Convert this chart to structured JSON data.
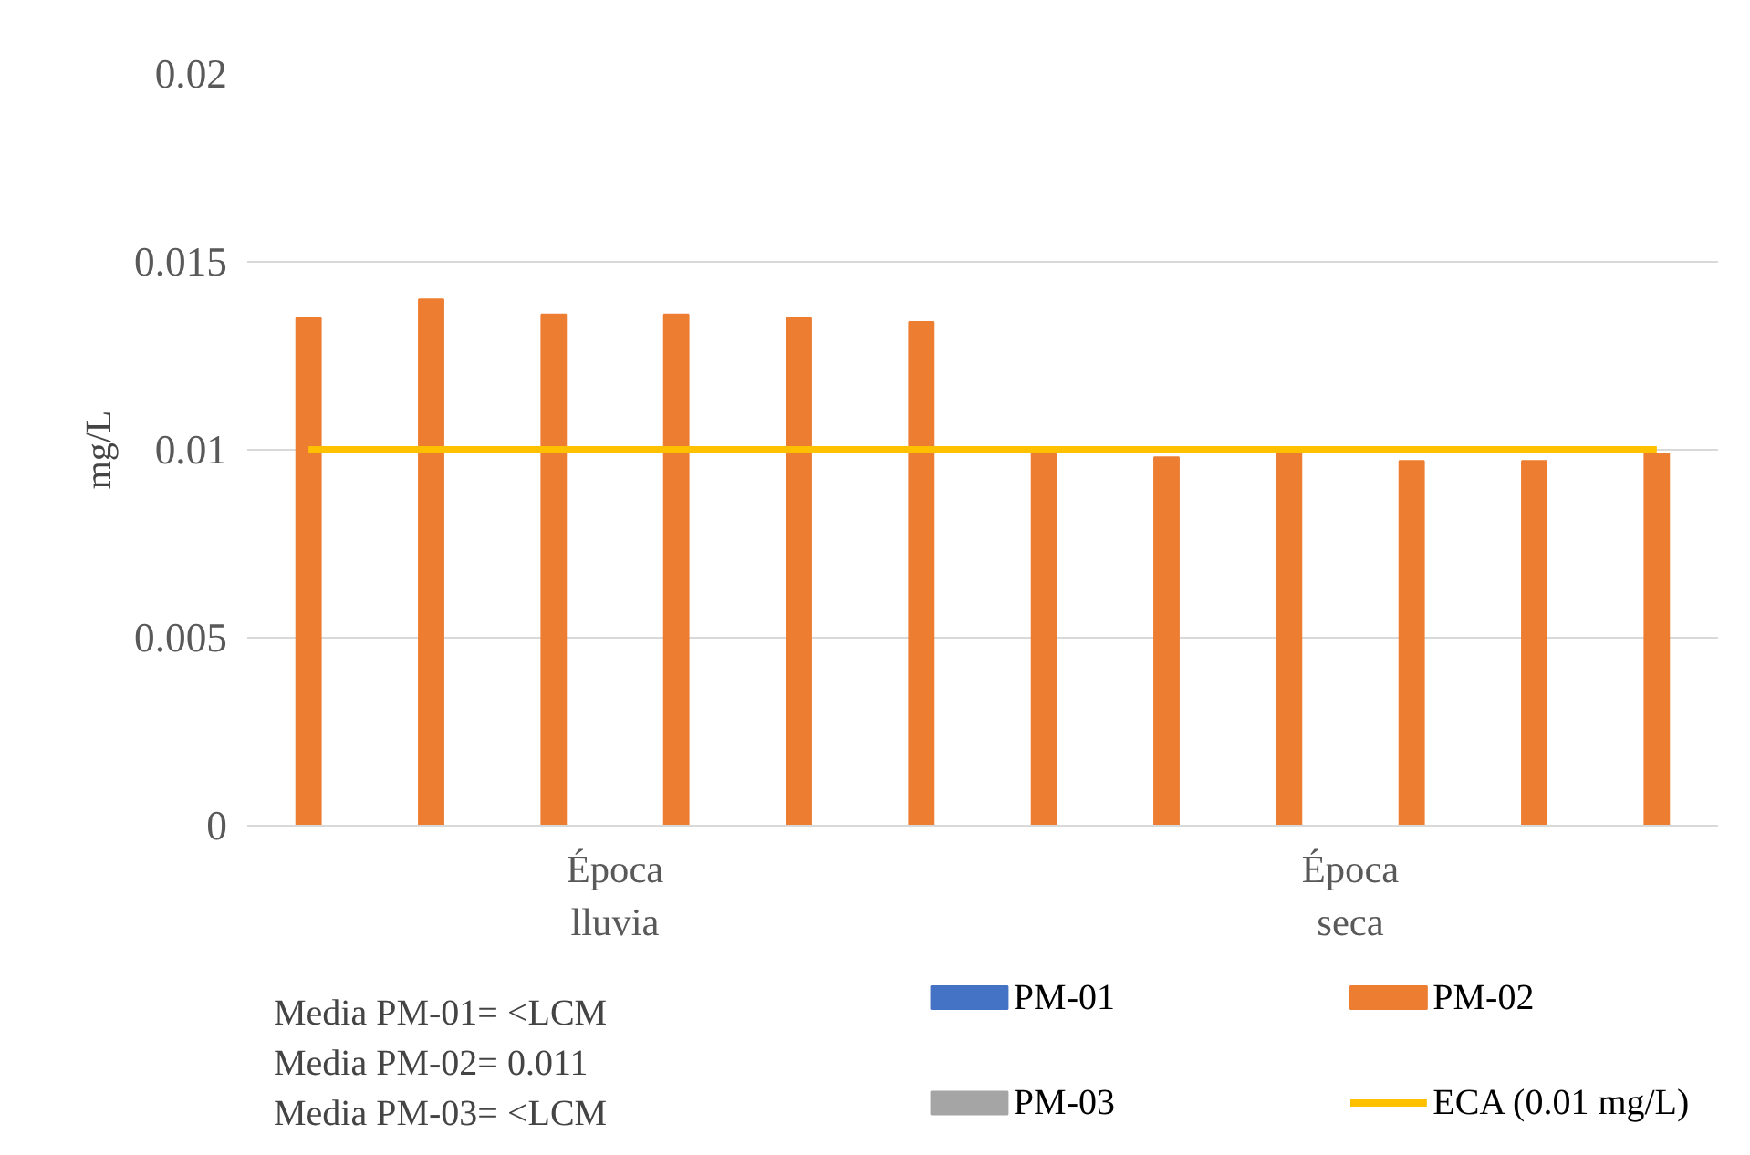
{
  "chart_data": {
    "type": "bar",
    "ylabel": "mg/L",
    "categories": [
      null,
      null,
      null,
      null,
      null,
      null,
      null,
      null,
      null,
      null,
      null,
      null
    ],
    "series": [
      {
        "name": "PM-01",
        "color": "#4472c4",
        "values": [
          null,
          null,
          null,
          null,
          null,
          null,
          null,
          null,
          null,
          null,
          null,
          null
        ]
      },
      {
        "name": "PM-02",
        "color": "#ed7d31",
        "values": [
          0.0135,
          0.014,
          0.0136,
          0.0136,
          0.0135,
          0.0134,
          0.01,
          0.0098,
          0.0099,
          0.0097,
          0.0097,
          0.0099
        ]
      },
      {
        "name": "PM-03",
        "color": "#a5a5a5",
        "values": [
          null,
          null,
          null,
          null,
          null,
          null,
          null,
          null,
          null,
          null,
          null,
          null
        ]
      },
      {
        "name": "ECA (0.01 mg/L)",
        "type": "line",
        "color": "#ffc000",
        "values": [
          0.01,
          0.01,
          0.01,
          0.01,
          0.01,
          0.01,
          0.01,
          0.01,
          0.01,
          0.01,
          0.01,
          0.01
        ]
      }
    ],
    "ylim": [
      0,
      0.02
    ],
    "yticks": [
      0,
      0.005,
      0.01,
      0.015,
      0.02
    ],
    "grid": "y",
    "legend": "bottom",
    "annotations": [
      "Época\nlluvia",
      "Época\nseca",
      "Media PM-01= <LCM\nMedia PM-02= 0.011\nMedia PM-03= <LCM"
    ]
  }
}
